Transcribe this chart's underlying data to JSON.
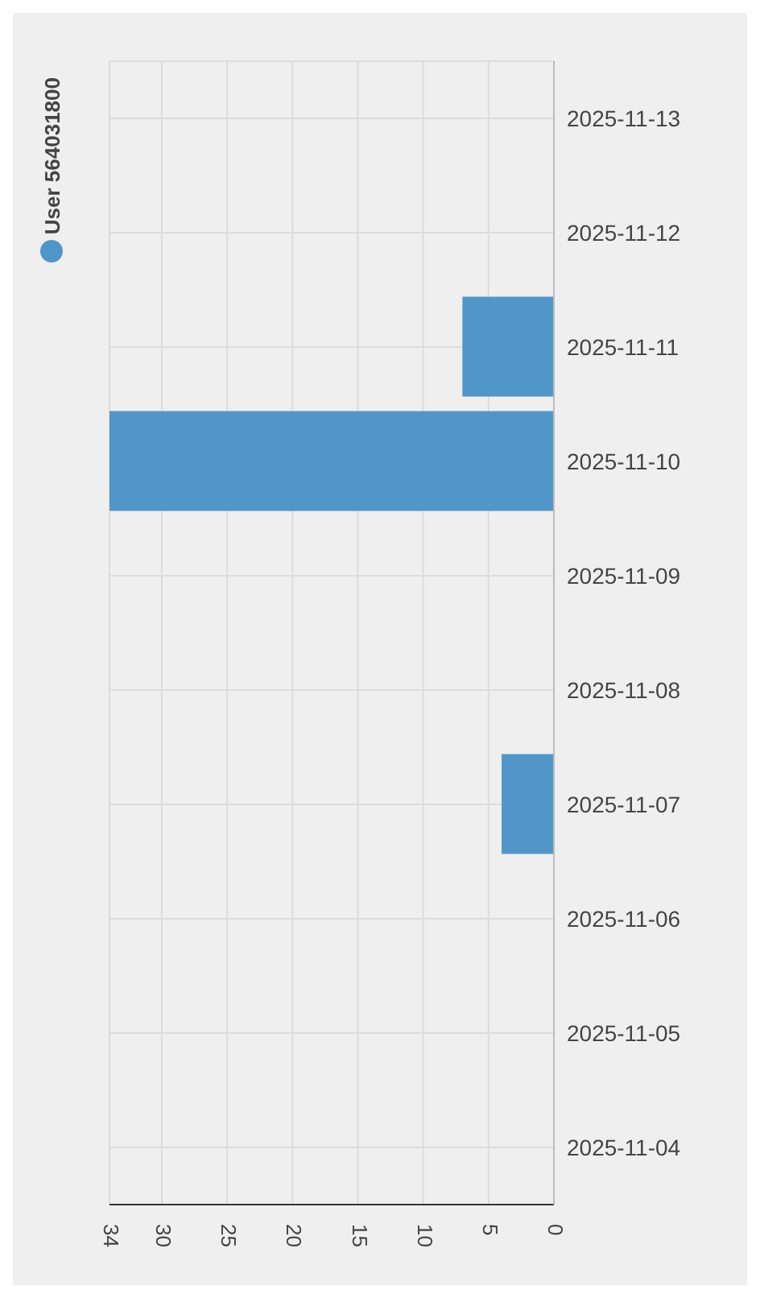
{
  "chart_data": {
    "type": "bar",
    "orientation": "horizontal",
    "categories": [
      "2025-11-13",
      "2025-11-12",
      "2025-11-11",
      "2025-11-10",
      "2025-11-09",
      "2025-11-08",
      "2025-11-07",
      "2025-11-06",
      "2025-11-05",
      "2025-11-04"
    ],
    "series": [
      {
        "name": "User 564031800",
        "color": "#5196c8",
        "values": [
          0,
          0,
          7,
          34,
          0,
          0,
          4,
          0,
          0,
          0
        ]
      }
    ],
    "xlim": [
      34,
      0
    ],
    "xticks": [
      34,
      30,
      25,
      20,
      15,
      10,
      5,
      0
    ],
    "grid": true,
    "legend": "top left"
  }
}
